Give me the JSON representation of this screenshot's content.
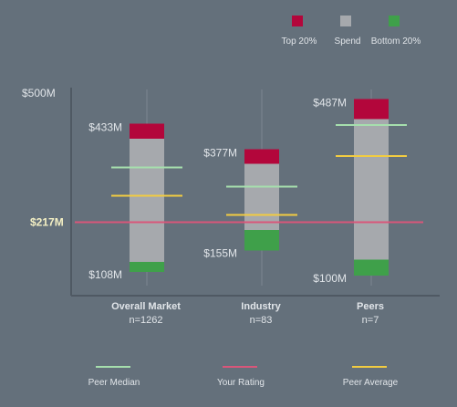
{
  "colors": {
    "background": "#64707b",
    "top": "#b3063b",
    "spend": "#a6a9ad",
    "bottom": "#3fa04a",
    "peer_median": "#a6dfad",
    "your_rating": "#d9567a",
    "peer_average": "#f2cc41",
    "axis": "#4f5963",
    "grid": "#7b8691",
    "text": "#e1e5e9",
    "highlight_text": "#f4f0c4"
  },
  "legend_top": [
    {
      "key": "top",
      "label": "Top 20%"
    },
    {
      "key": "spend",
      "label": "Spend"
    },
    {
      "key": "bottom",
      "label": "Bottom 20%"
    }
  ],
  "legend_bottom": [
    {
      "key": "peer_median",
      "label": "Peer Median"
    },
    {
      "key": "your_rating",
      "label": "Your Rating"
    },
    {
      "key": "peer_average",
      "label": "Peer Average"
    }
  ],
  "chart_data": {
    "type": "bar",
    "title": "",
    "xlabel": "",
    "ylabel": "",
    "ylim": [
      0,
      500
    ],
    "y_ticks": [
      {
        "value": 500,
        "label": "$500M"
      }
    ],
    "your_rating": {
      "value": 217,
      "label": "$217M"
    },
    "categories": [
      {
        "name": "Overall Market",
        "n": "n=1262",
        "top_label": "$433M",
        "bottom_label": "$108M",
        "max": 433,
        "top20_start": 400,
        "bottom20_end": 130,
        "min": 108,
        "peer_median": 337,
        "peer_average": 275
      },
      {
        "name": "Industry",
        "n": "n=83",
        "top_label": "$377M",
        "bottom_label": "$155M",
        "max": 377,
        "top20_start": 345,
        "bottom20_end": 200,
        "min": 155,
        "peer_median": 295,
        "peer_average": 233
      },
      {
        "name": "Peers",
        "n": "n=7",
        "top_label": "$487M",
        "bottom_label": "$100M",
        "max": 487,
        "top20_start": 443,
        "bottom20_end": 135,
        "min": 100,
        "peer_median": 430,
        "peer_average": 362
      }
    ]
  }
}
